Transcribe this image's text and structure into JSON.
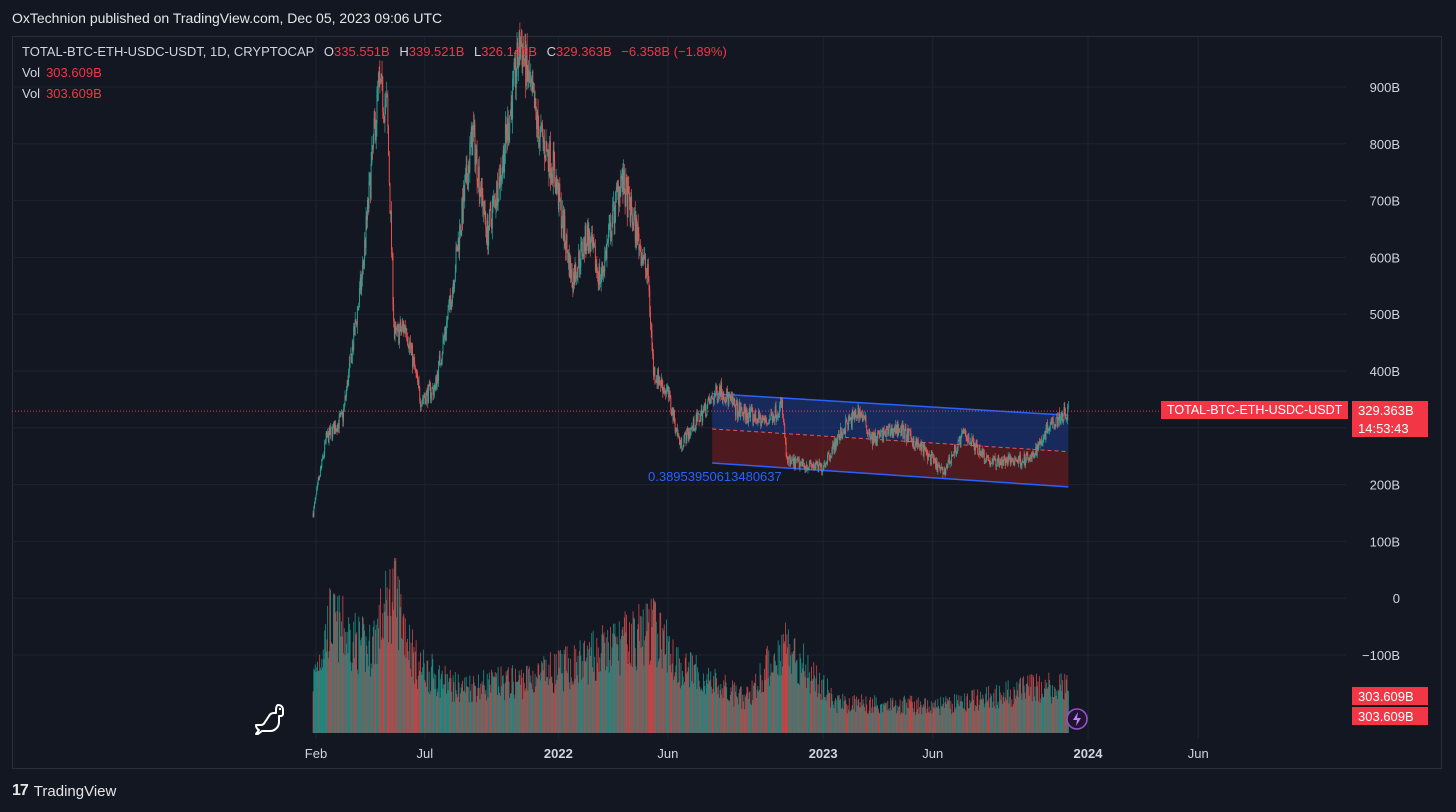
{
  "publisher": "OxTechnion published on TradingView.com, Dec 05, 2023 09:06 UTC",
  "legend": {
    "symbol": "TOTAL-BTC-ETH-USDC-USDT, 1D, CRYPTOCAP",
    "o_label": "O",
    "o_value": "335.551B",
    "h_label": "H",
    "h_value": "339.521B",
    "l_label": "L",
    "l_value": "326.146B",
    "c_label": "C",
    "c_value": "329.363B",
    "change": "−6.358B (−1.89%)",
    "vol1_label": "Vol",
    "vol1_value": "303.609B",
    "vol2_label": "Vol",
    "vol2_value": "303.609B"
  },
  "price_label": {
    "symbol": "TOTAL-BTC-ETH-USDC-USDT",
    "value": "329.363B",
    "countdown": "14:53:43"
  },
  "volume_labels": [
    "303.609B",
    "303.609B"
  ],
  "channel_annotation": "0.38953950613480637",
  "footer": {
    "brand": "TradingView",
    "logo": "17"
  },
  "colors": {
    "up": "#26a69a",
    "down": "#ef5350",
    "accent": "#f23645",
    "channel_line": "#2962ff",
    "channel_upper_fill": "#1e3a8a",
    "channel_lower_fill": "#7f1d1d"
  },
  "chart_data": {
    "type": "candlestick",
    "y_ticks": [
      "900B",
      "800B",
      "700B",
      "600B",
      "500B",
      "400B",
      "300B",
      "200B",
      "100B",
      "0",
      "−100B"
    ],
    "y_range": [
      -200,
      1000
    ],
    "y_unit": "B USD",
    "x_ticks": [
      "Feb",
      "Jul",
      "2022",
      "Jun",
      "2023",
      "Jun",
      "2024",
      "Jun"
    ],
    "price_series": [
      [
        "2021-01-28",
        150
      ],
      [
        "2021-02-15",
        280
      ],
      [
        "2021-03-10",
        320
      ],
      [
        "2021-04-05",
        560
      ],
      [
        "2021-04-28",
        900
      ],
      [
        "2021-05-10",
        860
      ],
      [
        "2021-05-20",
        460
      ],
      [
        "2021-06-05",
        480
      ],
      [
        "2021-06-25",
        350
      ],
      [
        "2021-07-15",
        370
      ],
      [
        "2021-08-05",
        520
      ],
      [
        "2021-09-05",
        820
      ],
      [
        "2021-09-25",
        640
      ],
      [
        "2021-10-15",
        760
      ],
      [
        "2021-11-10",
        980
      ],
      [
        "2021-12-05",
        820
      ],
      [
        "2021-12-25",
        760
      ],
      [
        "2022-01-20",
        560
      ],
      [
        "2022-02-10",
        640
      ],
      [
        "2022-02-28",
        560
      ],
      [
        "2022-03-28",
        740
      ],
      [
        "2022-04-20",
        640
      ],
      [
        "2022-05-05",
        560
      ],
      [
        "2022-05-12",
        400
      ],
      [
        "2022-06-01",
        360
      ],
      [
        "2022-06-18",
        270
      ],
      [
        "2022-07-15",
        320
      ],
      [
        "2022-08-12",
        370
      ],
      [
        "2022-09-05",
        330
      ],
      [
        "2022-10-15",
        310
      ],
      [
        "2022-11-05",
        340
      ],
      [
        "2022-11-12",
        240
      ],
      [
        "2022-12-30",
        230
      ],
      [
        "2023-01-30",
        300
      ],
      [
        "2023-02-20",
        330
      ],
      [
        "2023-03-10",
        280
      ],
      [
        "2023-04-15",
        300
      ],
      [
        "2023-05-20",
        260
      ],
      [
        "2023-06-15",
        220
      ],
      [
        "2023-07-14",
        290
      ],
      [
        "2023-08-20",
        240
      ],
      [
        "2023-10-15",
        245
      ],
      [
        "2023-11-10",
        310
      ],
      [
        "2023-12-05",
        329.363
      ]
    ],
    "volume_series_relative": [
      [
        "2021-01-28",
        0.35
      ],
      [
        "2021-02-20",
        0.75
      ],
      [
        "2021-04-15",
        0.55
      ],
      [
        "2021-05-19",
        0.95
      ],
      [
        "2021-06-20",
        0.45
      ],
      [
        "2021-08-15",
        0.3
      ],
      [
        "2021-11-15",
        0.35
      ],
      [
        "2022-01-22",
        0.45
      ],
      [
        "2022-05-12",
        0.7
      ],
      [
        "2022-06-18",
        0.45
      ],
      [
        "2022-09-15",
        0.22
      ],
      [
        "2022-11-09",
        0.6
      ],
      [
        "2023-01-20",
        0.2
      ],
      [
        "2023-06-15",
        0.18
      ],
      [
        "2023-10-24",
        0.3
      ],
      [
        "2023-12-05",
        0.3
      ]
    ],
    "channel": {
      "start": "2022-08-01",
      "end": "2023-12-05",
      "upper": [
        360,
        322
      ],
      "mid": [
        298,
        258
      ],
      "lower": [
        238,
        196
      ]
    },
    "last_price_line": 329.363,
    "grid": true
  }
}
